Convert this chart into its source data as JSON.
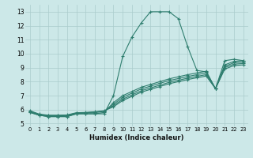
{
  "xlabel": "Humidex (Indice chaleur)",
  "ylabel": "",
  "background_color": "#cce8e8",
  "grid_color": "#aacccc",
  "line_color": "#2e7d6e",
  "xlim": [
    -0.5,
    23.5
  ],
  "ylim": [
    4.8,
    13.5
  ],
  "yticks": [
    5,
    6,
    7,
    8,
    9,
    10,
    11,
    12,
    13
  ],
  "xticks": [
    0,
    1,
    2,
    3,
    4,
    5,
    6,
    7,
    8,
    9,
    10,
    11,
    12,
    13,
    14,
    15,
    16,
    17,
    18,
    19,
    20,
    21,
    22,
    23
  ],
  "series": [
    [
      5.8,
      5.6,
      5.5,
      5.5,
      5.5,
      5.7,
      5.7,
      5.7,
      5.7,
      7.0,
      9.8,
      11.2,
      12.2,
      13.0,
      13.0,
      13.0,
      12.5,
      10.5,
      8.8,
      8.7,
      7.5,
      9.5,
      9.6,
      9.5
    ],
    [
      5.8,
      5.6,
      5.5,
      5.5,
      5.5,
      5.7,
      5.7,
      5.7,
      5.8,
      6.5,
      7.0,
      7.3,
      7.6,
      7.8,
      8.0,
      8.2,
      8.35,
      8.5,
      8.62,
      8.75,
      7.5,
      9.2,
      9.45,
      9.5
    ],
    [
      5.85,
      5.62,
      5.55,
      5.55,
      5.58,
      5.72,
      5.75,
      5.78,
      5.88,
      6.38,
      6.88,
      7.18,
      7.48,
      7.68,
      7.88,
      8.08,
      8.22,
      8.37,
      8.5,
      8.62,
      7.5,
      9.1,
      9.35,
      9.4
    ],
    [
      5.9,
      5.65,
      5.58,
      5.58,
      5.6,
      5.75,
      5.78,
      5.82,
      5.9,
      6.28,
      6.75,
      7.05,
      7.35,
      7.55,
      7.75,
      7.95,
      8.1,
      8.25,
      8.38,
      8.5,
      7.5,
      9.0,
      9.25,
      9.3
    ],
    [
      5.92,
      5.68,
      5.6,
      5.6,
      5.62,
      5.78,
      5.8,
      5.85,
      5.92,
      6.2,
      6.65,
      6.95,
      7.25,
      7.45,
      7.65,
      7.85,
      8.0,
      8.15,
      8.28,
      8.4,
      7.5,
      8.9,
      9.15,
      9.2
    ]
  ]
}
